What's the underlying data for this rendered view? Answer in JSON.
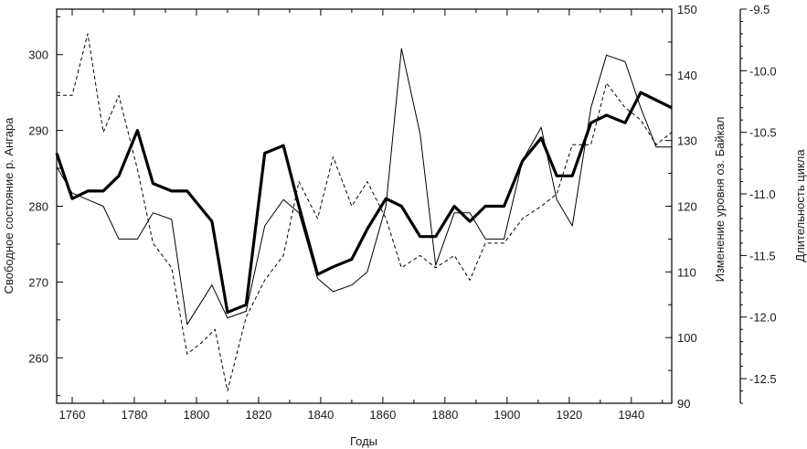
{
  "chart_data": {
    "type": "line",
    "title": "",
    "xlabel": "Годы",
    "xlim": [
      1755,
      1953
    ],
    "x_ticks": [
      1760,
      1780,
      1800,
      1820,
      1840,
      1860,
      1880,
      1900,
      1920,
      1940
    ],
    "axes": {
      "left": {
        "label": "Свободное состояние р. Ангара",
        "lim": [
          254,
          306
        ],
        "ticks": [
          260,
          270,
          280,
          290,
          300
        ]
      },
      "right1": {
        "label": "Изменение уровня оз. Байкал",
        "lim": [
          90,
          150
        ],
        "ticks": [
          90,
          100,
          110,
          120,
          130,
          140,
          150
        ]
      },
      "right2": {
        "label": "Длительность цикла",
        "lim": [
          -12.7,
          -9.5
        ],
        "ticks": [
          -9.5,
          -10.0,
          -10.5,
          -11.0,
          -11.5,
          -12.0,
          -12.5
        ]
      }
    },
    "grid": false,
    "series": [
      {
        "style": "thick-solid",
        "axis": "left",
        "x": [
          1755,
          1760,
          1765,
          1770,
          1775,
          1781,
          1786,
          1792,
          1797,
          1805,
          1810,
          1816,
          1822,
          1828,
          1833,
          1839,
          1844,
          1850,
          1855,
          1861,
          1866,
          1872,
          1877,
          1883,
          1888,
          1893,
          1899,
          1905,
          1911,
          1916,
          1921,
          1927,
          1932,
          1938,
          1943,
          1948,
          1953
        ],
        "values": [
          287,
          281,
          282,
          282,
          284,
          290,
          283,
          282,
          282,
          278,
          266,
          267,
          287,
          288,
          280,
          271,
          272,
          273,
          277,
          281,
          280,
          276,
          276,
          280,
          278,
          280,
          280,
          286,
          289,
          284,
          284,
          291,
          292,
          291,
          295,
          294,
          293
        ]
      },
      {
        "style": "thin-solid",
        "axis": "right1",
        "x": [
          1755,
          1760,
          1765,
          1770,
          1775,
          1781,
          1786,
          1792,
          1797,
          1805,
          1810,
          1816,
          1822,
          1828,
          1833,
          1839,
          1844,
          1850,
          1855,
          1861,
          1866,
          1872,
          1877,
          1883,
          1888,
          1893,
          1899,
          1905,
          1911,
          1916,
          1921,
          1927,
          1932,
          1938,
          1943,
          1948,
          1953
        ],
        "values": [
          126,
          122,
          121,
          120,
          115,
          115,
          119,
          118,
          102,
          108,
          103,
          104,
          117,
          121,
          119,
          109,
          107,
          108,
          110,
          120,
          144,
          131,
          111,
          119,
          119,
          115,
          115,
          127,
          132,
          121,
          117,
          135,
          143,
          142,
          135,
          129,
          129
        ]
      },
      {
        "style": "dashed",
        "axis": "right2",
        "x": [
          1755,
          1760,
          1765,
          1770,
          1775,
          1781,
          1786,
          1792,
          1797,
          1802,
          1806,
          1810,
          1816,
          1822,
          1828,
          1833,
          1839,
          1844,
          1850,
          1855,
          1861,
          1866,
          1872,
          1877,
          1883,
          1888,
          1893,
          1899,
          1905,
          1911,
          1916,
          1921,
          1927,
          1932,
          1938,
          1943,
          1948,
          1953
        ],
        "values": [
          -10.2,
          -10.2,
          -9.7,
          -10.5,
          -10.2,
          -10.8,
          -11.4,
          -11.6,
          -12.3,
          -12.2,
          -12.1,
          -12.6,
          -12.0,
          -11.7,
          -11.5,
          -10.9,
          -11.2,
          -10.7,
          -11.1,
          -10.9,
          -11.2,
          -11.6,
          -11.5,
          -11.6,
          -11.5,
          -11.7,
          -11.4,
          -11.4,
          -11.2,
          -11.1,
          -11.0,
          -10.6,
          -10.6,
          -10.1,
          -10.3,
          -10.4,
          -10.6,
          -10.5
        ]
      }
    ]
  }
}
